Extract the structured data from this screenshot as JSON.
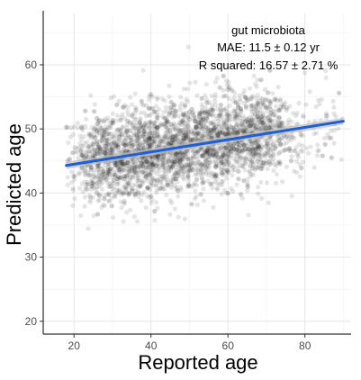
{
  "chart_data": {
    "type": "scatter",
    "title": "",
    "xlabel": "Reported age",
    "ylabel": "Predicted age",
    "xlim": [
      12,
      92
    ],
    "ylim": [
      18,
      68
    ],
    "xticks": [
      20,
      40,
      60,
      80
    ],
    "yticks": [
      20,
      30,
      40,
      50,
      60
    ],
    "grid": true,
    "annotations": [
      "gut microbiota",
      "MAE: 11.5 ± 0.12 yr",
      "R squared: 16.57 ± 2.71 %"
    ],
    "scatter_summary": {
      "n_points_approx": 3200,
      "x_range": [
        18,
        90
      ],
      "y_center_at_x_min": 44.5,
      "y_center_at_x_max": 51.0,
      "y_spread_sd": 3.6,
      "point_color": "#000000",
      "point_alpha": 0.1
    },
    "fit_line": {
      "x": [
        18,
        90
      ],
      "y": [
        44.3,
        51.2
      ],
      "color": "#1f5fd6",
      "ci_band_color": "#bfbfbf"
    }
  }
}
